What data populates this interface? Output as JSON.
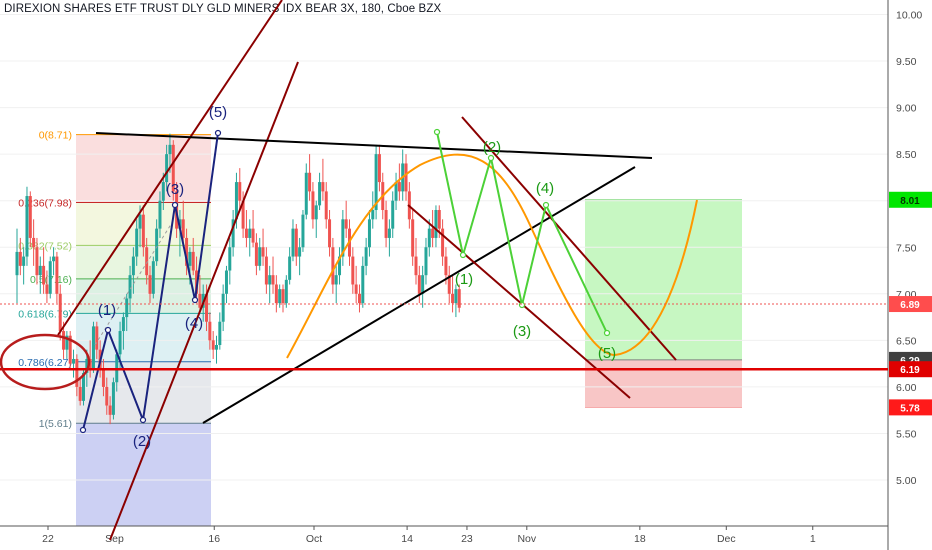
{
  "chart_data": {
    "type": "candlestick",
    "title": "DIREXION SHARES ETF TRUST DLY GLD MINERS IDX BEAR 3X, 180, Cboe BZX",
    "y_range": [
      4.5,
      10.1
    ],
    "y_ticks": [
      "10.00",
      "9.50",
      "9.00",
      "8.50",
      "8.00",
      "7.50",
      "7.00",
      "6.50",
      "6.00",
      "5.50",
      "5.00"
    ],
    "x_ticks": [
      {
        "label": "22",
        "day": 0
      },
      {
        "label": "Sep",
        "day": 10
      },
      {
        "label": "16",
        "day": 25
      },
      {
        "label": "Oct",
        "day": 40
      },
      {
        "label": "14",
        "day": 54
      },
      {
        "label": "23",
        "day": 63
      },
      {
        "label": "Nov",
        "day": 72
      },
      {
        "label": "18",
        "day": 89
      },
      {
        "label": "Dec",
        "day": 102
      },
      {
        "label": "1",
        "day": 115
      }
    ],
    "price_badges": [
      {
        "label": "8.01",
        "value": 8.01,
        "color": "#00e600",
        "text_color": "#003300"
      },
      {
        "label": "6.89",
        "value": 6.89,
        "color": "#ff4d4d",
        "text_color": "#ffffff"
      },
      {
        "label": "6.29",
        "value": 6.29,
        "color": "#404040",
        "text_color": "#ffffff"
      },
      {
        "label": "6.19",
        "value": 6.19,
        "color": "#e00000",
        "text_color": "#ffffff"
      },
      {
        "label": "5.78",
        "value": 5.78,
        "color": "#ff1a1a",
        "text_color": "#ffffff"
      }
    ],
    "fib_levels": [
      {
        "label": "0(8.71)",
        "value": 8.71,
        "color": "#ff9800"
      },
      {
        "label": "0.236(7.98)",
        "value": 7.98,
        "color": "#c62828"
      },
      {
        "label": "0.382(7.52)",
        "value": 7.52,
        "color": "#9ccc65"
      },
      {
        "label": "0.5(7.16)",
        "value": 7.16,
        "color": "#4caf50"
      },
      {
        "label": "0.618(6.79)",
        "value": 6.79,
        "color": "#26a69a"
      },
      {
        "label": "0.786(6.27)",
        "value": 6.27,
        "color": "#2a6cb0"
      },
      {
        "label": "1(5.61)",
        "value": 5.61,
        "color": "#607d8b"
      }
    ],
    "waves_blue": [
      "(5)",
      "(3)",
      "(1)",
      "(4)",
      "(2)"
    ],
    "waves_green": [
      "(2)",
      "(4)",
      "(1)",
      "(3)",
      "(5)"
    ],
    "candles": [
      [
        0,
        7.2,
        7.7,
        6.9,
        7.45
      ],
      [
        0.5,
        7.45,
        7.6,
        7.2,
        7.3
      ],
      [
        1,
        7.3,
        7.5,
        7.1,
        7.4
      ],
      [
        1.5,
        7.4,
        8.15,
        7.3,
        8.05
      ],
      [
        2,
        8.05,
        8.1,
        7.5,
        7.6
      ],
      [
        2.5,
        7.6,
        7.8,
        7.3,
        7.5
      ],
      [
        3,
        7.5,
        7.6,
        7.1,
        7.2
      ],
      [
        3.5,
        7.2,
        7.4,
        7.0,
        7.3
      ],
      [
        4,
        7.3,
        7.5,
        7.0,
        7.1
      ],
      [
        4.5,
        7.1,
        7.25,
        6.9,
        7.0
      ],
      [
        5,
        7.0,
        7.4,
        6.95,
        7.35
      ],
      [
        5.5,
        7.35,
        7.5,
        7.2,
        7.4
      ],
      [
        6,
        7.4,
        7.45,
        6.9,
        7.0
      ],
      [
        6.5,
        7.0,
        7.1,
        6.5,
        6.6
      ],
      [
        7,
        6.6,
        6.7,
        6.3,
        6.4
      ],
      [
        7.5,
        6.4,
        6.6,
        6.3,
        6.55
      ],
      [
        8,
        6.55,
        6.6,
        6.2,
        6.25
      ],
      [
        8.5,
        6.25,
        6.4,
        6.1,
        6.3
      ],
      [
        9,
        6.3,
        6.35,
        5.9,
        6.0
      ],
      [
        9.5,
        6.0,
        6.1,
        5.8,
        5.85
      ],
      [
        10,
        5.85,
        6.2,
        5.8,
        6.15
      ],
      [
        10.5,
        6.15,
        6.4,
        6.0,
        6.3
      ],
      [
        11,
        6.3,
        6.5,
        6.1,
        6.2
      ],
      [
        11.5,
        6.2,
        6.7,
        6.15,
        6.65
      ],
      [
        12,
        6.65,
        6.7,
        6.3,
        6.4
      ],
      [
        12.5,
        6.4,
        6.5,
        6.1,
        6.2
      ],
      [
        13,
        6.2,
        6.3,
        5.9,
        6.0
      ],
      [
        13.5,
        6.0,
        6.1,
        5.7,
        5.8
      ],
      [
        14,
        5.8,
        5.9,
        5.6,
        5.7
      ],
      [
        14.5,
        5.7,
        6.1,
        5.65,
        6.05
      ],
      [
        15,
        6.05,
        6.4,
        5.95,
        6.35
      ],
      [
        15.5,
        6.35,
        6.7,
        6.2,
        6.6
      ],
      [
        16,
        6.6,
        6.8,
        6.4,
        6.75
      ],
      [
        16.5,
        6.75,
        7.0,
        6.6,
        6.95
      ],
      [
        17,
        6.95,
        7.3,
        6.8,
        7.2
      ],
      [
        17.5,
        7.2,
        7.5,
        7.0,
        7.4
      ],
      [
        18,
        7.4,
        7.8,
        7.3,
        7.7
      ],
      [
        18.5,
        7.7,
        7.95,
        7.5,
        7.85
      ],
      [
        19,
        7.85,
        7.95,
        7.4,
        7.5
      ],
      [
        19.5,
        7.5,
        7.6,
        7.1,
        7.2
      ],
      [
        20,
        7.2,
        7.3,
        6.9,
        7.0
      ],
      [
        20.5,
        7.0,
        7.4,
        6.95,
        7.35
      ],
      [
        21,
        7.35,
        7.8,
        7.3,
        7.7
      ],
      [
        21.5,
        7.7,
        8.1,
        7.6,
        8.0
      ],
      [
        22,
        8.0,
        8.3,
        7.9,
        8.2
      ],
      [
        22.5,
        8.2,
        8.6,
        8.1,
        8.5
      ],
      [
        23,
        8.5,
        8.72,
        8.3,
        8.6
      ],
      [
        23.5,
        8.6,
        8.65,
        8.0,
        8.1
      ],
      [
        24,
        8.1,
        8.2,
        7.6,
        7.7
      ],
      [
        24.5,
        7.7,
        7.9,
        7.4,
        7.8
      ],
      [
        25,
        7.8,
        8.0,
        7.5,
        7.6
      ],
      [
        25.5,
        7.6,
        7.7,
        7.2,
        7.3
      ],
      [
        26,
        7.3,
        7.5,
        7.1,
        7.45
      ],
      [
        26.5,
        7.45,
        7.6,
        7.2,
        7.25
      ],
      [
        27,
        7.25,
        7.4,
        6.9,
        7.0
      ],
      [
        27.5,
        7.0,
        7.2,
        6.8,
        6.85
      ],
      [
        28,
        6.85,
        7.1,
        6.7,
        7.0
      ],
      [
        28.5,
        7.0,
        7.1,
        6.6,
        6.7
      ],
      [
        29,
        6.7,
        6.8,
        6.4,
        6.5
      ],
      [
        29.5,
        6.5,
        6.6,
        6.3,
        6.4
      ],
      [
        30,
        6.4,
        6.55,
        6.25,
        6.45
      ],
      [
        30.5,
        6.45,
        6.8,
        6.4,
        6.7
      ],
      [
        31,
        6.7,
        7.1,
        6.6,
        7.0
      ],
      [
        31.5,
        7.0,
        7.3,
        6.9,
        7.25
      ],
      [
        32,
        7.25,
        7.6,
        7.1,
        7.5
      ],
      [
        32.5,
        7.5,
        7.9,
        7.4,
        7.8
      ],
      [
        33,
        7.8,
        8.3,
        7.7,
        8.2
      ],
      [
        33.5,
        8.2,
        8.35,
        7.9,
        8.0
      ],
      [
        34,
        8.0,
        8.1,
        7.6,
        7.7
      ],
      [
        34.5,
        7.7,
        7.9,
        7.5,
        7.6
      ],
      [
        35,
        7.6,
        7.8,
        7.4,
        7.7
      ],
      [
        35.5,
        7.7,
        7.9,
        7.5,
        7.55
      ],
      [
        36,
        7.55,
        7.65,
        7.2,
        7.3
      ],
      [
        36.5,
        7.3,
        7.6,
        7.25,
        7.5
      ],
      [
        37,
        7.5,
        7.7,
        7.3,
        7.4
      ],
      [
        37.5,
        7.4,
        7.5,
        7.0,
        7.1
      ],
      [
        38,
        7.1,
        7.3,
        6.9,
        7.2
      ],
      [
        38.5,
        7.2,
        7.4,
        7.0,
        7.1
      ],
      [
        39,
        7.1,
        7.2,
        6.8,
        6.9
      ],
      [
        39.5,
        6.9,
        7.1,
        6.85,
        7.05
      ],
      [
        40,
        7.05,
        7.1,
        6.8,
        6.9
      ],
      [
        40.5,
        6.9,
        7.2,
        6.85,
        7.15
      ],
      [
        41,
        7.15,
        7.5,
        7.1,
        7.4
      ],
      [
        41.5,
        7.4,
        7.8,
        7.35,
        7.7
      ],
      [
        42,
        7.7,
        7.75,
        7.3,
        7.4
      ],
      [
        42.5,
        7.4,
        7.6,
        7.2,
        7.5
      ],
      [
        43,
        7.5,
        7.9,
        7.45,
        7.85
      ],
      [
        43.5,
        7.85,
        8.4,
        7.8,
        8.3
      ],
      [
        44,
        8.3,
        8.5,
        8.0,
        8.1
      ],
      [
        44.5,
        8.1,
        8.2,
        7.7,
        7.8
      ],
      [
        45,
        7.8,
        8.0,
        7.6,
        7.95
      ],
      [
        45.5,
        7.95,
        8.3,
        7.9,
        8.2
      ],
      [
        46,
        8.2,
        8.45,
        8.0,
        8.1
      ],
      [
        46.5,
        8.1,
        8.2,
        7.7,
        7.8
      ],
      [
        47,
        7.8,
        7.9,
        7.4,
        7.5
      ],
      [
        47.5,
        7.5,
        7.6,
        7.0,
        7.1
      ],
      [
        48,
        7.1,
        7.3,
        6.9,
        7.2
      ],
      [
        48.5,
        7.2,
        7.5,
        7.1,
        7.4
      ],
      [
        49,
        7.4,
        7.9,
        7.3,
        7.8
      ],
      [
        49.5,
        7.8,
        8.0,
        7.6,
        7.7
      ],
      [
        50,
        7.7,
        7.8,
        7.3,
        7.4
      ],
      [
        50.5,
        7.4,
        7.5,
        7.0,
        7.1
      ],
      [
        51,
        7.1,
        7.3,
        6.9,
        7.0
      ],
      [
        51.5,
        7.0,
        7.1,
        6.8,
        6.9
      ],
      [
        52,
        6.9,
        7.4,
        6.85,
        7.3
      ],
      [
        52.5,
        7.3,
        7.6,
        7.2,
        7.5
      ],
      [
        53,
        7.5,
        7.9,
        7.4,
        7.8
      ],
      [
        53.5,
        7.8,
        8.1,
        7.7,
        7.9
      ],
      [
        54,
        7.9,
        8.6,
        7.8,
        8.5
      ],
      [
        54.5,
        8.5,
        8.6,
        8.1,
        8.2
      ],
      [
        55,
        8.2,
        8.3,
        7.8,
        7.9
      ],
      [
        55.5,
        7.9,
        8.0,
        7.5,
        7.6
      ],
      [
        56,
        7.6,
        7.8,
        7.4,
        7.7
      ],
      [
        56.5,
        7.7,
        8.1,
        7.6,
        8.0
      ],
      [
        57,
        8.0,
        8.3,
        7.9,
        8.2
      ],
      [
        57.5,
        8.2,
        8.4,
        8.0,
        8.1
      ],
      [
        58,
        8.1,
        8.55,
        8.0,
        8.4
      ],
      [
        58.5,
        8.4,
        8.5,
        8.0,
        8.1
      ],
      [
        59,
        8.1,
        8.2,
        7.7,
        7.8
      ],
      [
        59.5,
        7.8,
        7.9,
        7.3,
        7.4
      ],
      [
        60,
        7.4,
        7.6,
        7.1,
        7.2
      ],
      [
        60.5,
        7.2,
        7.3,
        6.9,
        7.0
      ],
      [
        61,
        7.0,
        7.3,
        6.85,
        7.2
      ],
      [
        61.5,
        7.2,
        7.6,
        7.1,
        7.5
      ],
      [
        62,
        7.5,
        7.8,
        7.4,
        7.7
      ],
      [
        62.5,
        7.7,
        7.9,
        7.5,
        7.6
      ],
      [
        63,
        7.6,
        7.95,
        7.5,
        7.9
      ],
      [
        63.5,
        7.9,
        7.95,
        7.6,
        7.7
      ],
      [
        64,
        7.7,
        7.8,
        7.3,
        7.4
      ],
      [
        64.5,
        7.4,
        7.5,
        7.1,
        7.2
      ],
      [
        65,
        7.2,
        7.3,
        6.9,
        7.0
      ],
      [
        65.5,
        7.0,
        7.2,
        6.8,
        6.9
      ],
      [
        66,
        6.9,
        7.1,
        6.75,
        7.05
      ],
      [
        66.5,
        7.05,
        7.1,
        6.8,
        6.85
      ]
    ]
  }
}
